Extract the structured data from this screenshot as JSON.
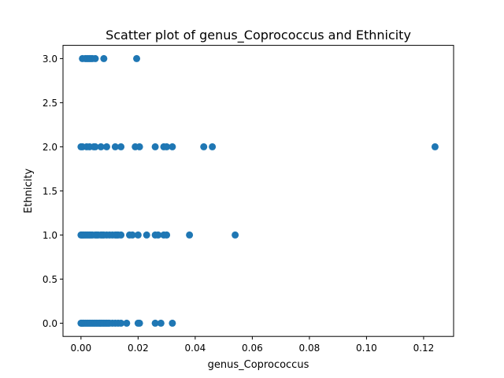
{
  "chart_data": {
    "type": "scatter",
    "title": "Scatter plot of genus_Coprococcus and Ethnicity",
    "xlabel": "genus_Coprococcus",
    "ylabel": "Ethnicity",
    "xlim": [
      -0.0063,
      0.1305
    ],
    "ylim": [
      -0.15,
      3.15
    ],
    "xticks": [
      0.0,
      0.02,
      0.04,
      0.06,
      0.08,
      0.1,
      0.12
    ],
    "xtick_labels": [
      "0.00",
      "0.02",
      "0.04",
      "0.06",
      "0.08",
      "0.10",
      "0.12"
    ],
    "yticks": [
      0.0,
      0.5,
      1.0,
      1.5,
      2.0,
      2.5,
      3.0
    ],
    "ytick_labels": [
      "0.0",
      "0.5",
      "1.0",
      "1.5",
      "2.0",
      "2.5",
      "3.0"
    ],
    "grid": false,
    "legend": "none",
    "marker_color": "#1f77b4",
    "series": [
      {
        "x": [
          0.0,
          0.0003,
          0.0006,
          0.001,
          0.0015,
          0.002,
          0.0025,
          0.003,
          0.0035,
          0.004,
          0.0045,
          0.005,
          0.0055,
          0.006,
          0.0065,
          0.007,
          0.0075,
          0.008,
          0.0085,
          0.009,
          0.0095,
          0.01,
          0.011,
          0.012,
          0.013,
          0.014,
          0.016,
          0.02,
          0.0205,
          0.026,
          0.028,
          0.032
        ],
        "y": [
          0,
          0,
          0,
          0,
          0,
          0,
          0,
          0,
          0,
          0,
          0,
          0,
          0,
          0,
          0,
          0,
          0,
          0,
          0,
          0,
          0,
          0,
          0,
          0,
          0,
          0,
          0,
          0,
          0,
          0,
          0,
          0
        ]
      },
      {
        "x": [
          0.0,
          0.0003,
          0.0006,
          0.001,
          0.0015,
          0.002,
          0.0025,
          0.003,
          0.0035,
          0.004,
          0.005,
          0.0055,
          0.006,
          0.007,
          0.0075,
          0.008,
          0.009,
          0.01,
          0.011,
          0.012,
          0.0125,
          0.013,
          0.014,
          0.017,
          0.018,
          0.02,
          0.023,
          0.026,
          0.027,
          0.029,
          0.03,
          0.038,
          0.054
        ],
        "y": [
          1,
          1,
          1,
          1,
          1,
          1,
          1,
          1,
          1,
          1,
          1,
          1,
          1,
          1,
          1,
          1,
          1,
          1,
          1,
          1,
          1,
          1,
          1,
          1,
          1,
          1,
          1,
          1,
          1,
          1,
          1,
          1,
          1
        ]
      },
      {
        "x": [
          0.0,
          0.0005,
          0.002,
          0.003,
          0.0045,
          0.005,
          0.007,
          0.009,
          0.012,
          0.014,
          0.019,
          0.0205,
          0.026,
          0.029,
          0.03,
          0.032,
          0.043,
          0.046,
          0.124
        ],
        "y": [
          2,
          2,
          2,
          2,
          2,
          2,
          2,
          2,
          2,
          2,
          2,
          2,
          2,
          2,
          2,
          2,
          2,
          2,
          2
        ]
      },
      {
        "x": [
          0.0005,
          0.0015,
          0.002,
          0.0025,
          0.003,
          0.0035,
          0.004,
          0.005,
          0.008,
          0.0195
        ],
        "y": [
          3,
          3,
          3,
          3,
          3,
          3,
          3,
          3,
          3,
          3
        ]
      }
    ]
  }
}
